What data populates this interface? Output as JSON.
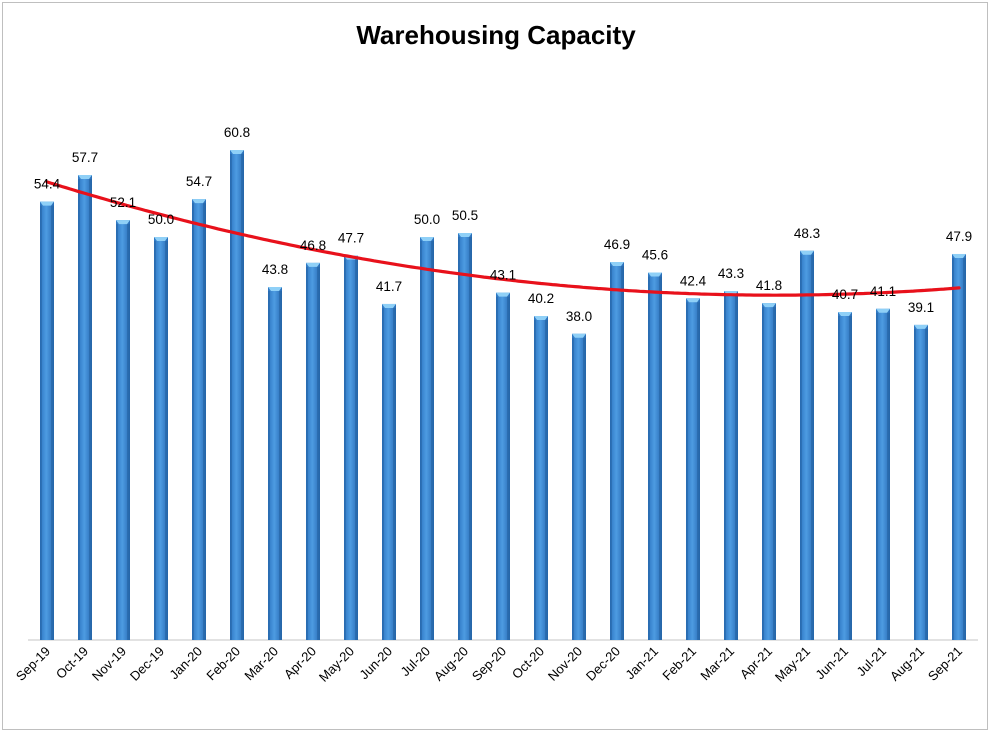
{
  "chart_data": {
    "type": "bar",
    "title": "Warehousing Capacity",
    "categories": [
      "Sep-19",
      "Oct-19",
      "Nov-19",
      "Dec-19",
      "Jan-20",
      "Feb-20",
      "Mar-20",
      "Apr-20",
      "May-20",
      "Jun-20",
      "Jul-20",
      "Aug-20",
      "Sep-20",
      "Oct-20",
      "Nov-20",
      "Dec-20",
      "Jan-21",
      "Feb-21",
      "Mar-21",
      "Apr-21",
      "May-21",
      "Jun-21",
      "Jul-21",
      "Aug-21",
      "Sep-21"
    ],
    "values": [
      54.4,
      57.7,
      52.1,
      50.0,
      54.7,
      60.8,
      43.8,
      46.8,
      47.7,
      41.7,
      50.0,
      50.5,
      43.1,
      40.2,
      38.0,
      46.9,
      45.6,
      42.4,
      43.3,
      41.8,
      48.3,
      40.7,
      41.1,
      39.1,
      47.9
    ],
    "data_labels": [
      "54.4",
      "57.7",
      "52.1",
      "50.0",
      "54.7",
      "60.8",
      "43.8",
      "46.8",
      "47.7",
      "41.7",
      "50.0",
      "50.5",
      "43.1",
      "40.2",
      "38.0",
      "46.9",
      "45.6",
      "42.4",
      "43.3",
      "41.8",
      "48.3",
      "40.7",
      "41.1",
      "39.1",
      "47.9"
    ],
    "trendline": {
      "type": "polynomial",
      "color": "#e8111b"
    },
    "xlabel": "",
    "ylabel": "",
    "ylim": [
      0,
      68
    ],
    "grid": false,
    "legend": "none",
    "bar_color": "#3f8fd6"
  }
}
